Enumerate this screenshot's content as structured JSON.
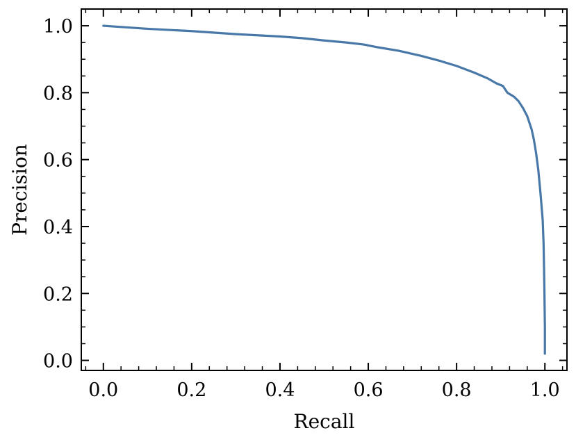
{
  "chart_data": {
    "type": "line",
    "title": "",
    "xlabel": "Recall",
    "ylabel": "Precision",
    "xlim": [
      -0.05,
      1.05
    ],
    "ylim": [
      -0.03,
      1.05
    ],
    "x_ticks": [
      0.0,
      0.2,
      0.4,
      0.6,
      0.8,
      1.0
    ],
    "x_tick_labels": [
      "0.0",
      "0.2",
      "0.4",
      "0.6",
      "0.8",
      "1.0"
    ],
    "y_ticks": [
      0.0,
      0.2,
      0.4,
      0.6,
      0.8,
      1.0
    ],
    "y_tick_labels": [
      "0.0",
      "0.2",
      "0.4",
      "0.6",
      "0.8",
      "1.0"
    ],
    "grid": false,
    "legend": "none",
    "tick_direction": "in",
    "series": [
      {
        "color": "#4878a8",
        "x": [
          0.0,
          0.1,
          0.2,
          0.3,
          0.4,
          0.45,
          0.5,
          0.55,
          0.59,
          0.62,
          0.67,
          0.72,
          0.76,
          0.8,
          0.84,
          0.87,
          0.89,
          0.905,
          0.915,
          0.93,
          0.94,
          0.95,
          0.96,
          0.97,
          0.975,
          0.98,
          0.985,
          0.99,
          0.995,
          0.997,
          0.998,
          0.999,
          1.0,
          1.0,
          1.0
        ],
        "y": [
          1.0,
          0.991,
          0.984,
          0.975,
          0.968,
          0.963,
          0.956,
          0.95,
          0.944,
          0.936,
          0.925,
          0.91,
          0.896,
          0.88,
          0.86,
          0.843,
          0.828,
          0.82,
          0.8,
          0.788,
          0.775,
          0.755,
          0.73,
          0.69,
          0.66,
          0.62,
          0.57,
          0.5,
          0.42,
          0.35,
          0.28,
          0.2,
          0.1,
          0.05,
          0.02
        ]
      }
    ]
  }
}
